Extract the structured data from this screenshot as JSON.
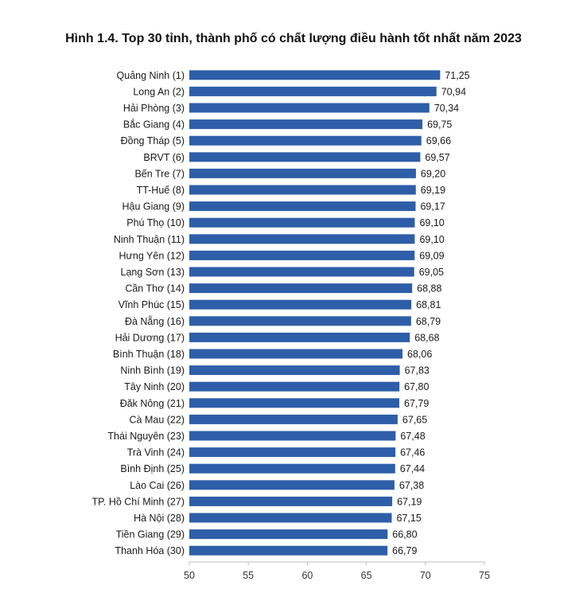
{
  "chart_data": {
    "type": "bar",
    "orientation": "horizontal",
    "title": "Hình 1.4. Top 30 tỉnh, thành phố có chất lượng điều hành tốt nhất năm 2023",
    "xlabel": "",
    "ylabel": "",
    "xlim": [
      50,
      75
    ],
    "xticks": [
      "50",
      "55",
      "60",
      "65",
      "70",
      "75"
    ],
    "bar_color": "#2e5ea8",
    "categories": [
      "Quảng Ninh (1)",
      "Long An (2)",
      "Hải Phòng (3)",
      "Bắc Giang (4)",
      "Đồng Tháp (5)",
      "BRVT (6)",
      "Bến Tre (7)",
      "TT-Huế (8)",
      "Hậu Giang (9)",
      "Phú Thọ (10)",
      "Ninh Thuận (11)",
      "Hưng Yên (12)",
      "Lạng Sơn (13)",
      "Cần Thơ (14)",
      "Vĩnh Phúc (15)",
      "Đà Nẵng (16)",
      "Hải Dương (17)",
      "Bình Thuận (18)",
      "Ninh Bình (19)",
      "Tây Ninh (20)",
      "Đăk Nông (21)",
      "Cà Mau (22)",
      "Thái Nguyên (23)",
      "Trà Vinh (24)",
      "Bình Định (25)",
      "Lào Cai (26)",
      "TP. Hồ Chí Minh (27)",
      "Hà Nội (28)",
      "Tiền Giang (29)",
      "Thanh Hóa (30)"
    ],
    "values": [
      71.25,
      70.94,
      70.34,
      69.75,
      69.66,
      69.57,
      69.2,
      69.19,
      69.17,
      69.1,
      69.1,
      69.09,
      69.05,
      68.88,
      68.81,
      68.79,
      68.68,
      68.06,
      67.83,
      67.8,
      67.79,
      67.65,
      67.48,
      67.46,
      67.44,
      67.38,
      67.19,
      67.15,
      66.8,
      66.79
    ],
    "value_labels": [
      "71,25",
      "70,94",
      "70,34",
      "69,75",
      "69,66",
      "69,57",
      "69,20",
      "69,19",
      "69,17",
      "69,10",
      "69,10",
      "69,09",
      "69,05",
      "68,88",
      "68,81",
      "68,79",
      "68,68",
      "68,06",
      "67,83",
      "67,80",
      "67,79",
      "67,65",
      "67,48",
      "67,46",
      "67,44",
      "67,38",
      "67,19",
      "67,15",
      "66,80",
      "66,79"
    ]
  }
}
